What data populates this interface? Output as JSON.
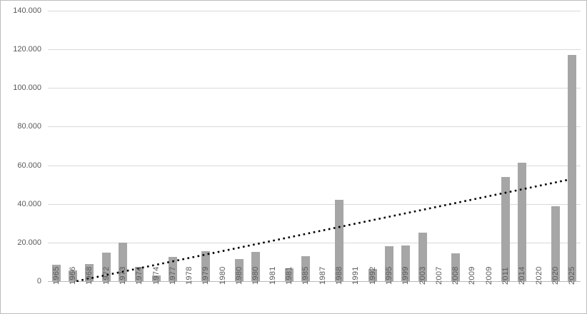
{
  "chart_data": {
    "type": "bar",
    "title": "",
    "xlabel": "",
    "ylabel": "",
    "categories": [
      "1965",
      "1966",
      "1968",
      "1972",
      "1973",
      "1974",
      "1974",
      "1977",
      "1978",
      "1979",
      "1980",
      "1980",
      "1980",
      "1981",
      "1981",
      "1985",
      "1987",
      "1988",
      "1991",
      "1992",
      "1995",
      "1999",
      "2003",
      "2007",
      "2008",
      "2009",
      "2009",
      "2011",
      "2014",
      "2020",
      "2020",
      "2025"
    ],
    "values": [
      8600,
      5600,
      9000,
      14800,
      19900,
      7300,
      2900,
      12700,
      0,
      15700,
      0,
      11300,
      15200,
      0,
      6700,
      13100,
      0,
      42200,
      0,
      6300,
      18000,
      18600,
      25200,
      0,
      14400,
      0,
      0,
      53800,
      61500,
      0,
      38900,
      117000
    ],
    "ylim": [
      0,
      140000
    ],
    "y_tick_values": [
      0,
      20000,
      40000,
      60000,
      80000,
      100000,
      120000,
      140000
    ],
    "y_tick_labels": [
      "0",
      "20.000",
      "40.000",
      "60.000",
      "80.000",
      "100.000",
      "120.000",
      "140.000"
    ],
    "grid": true,
    "legend": "none",
    "number_format": "dot-thousands-separator",
    "trendline": {
      "type": "linear",
      "style": "dotted",
      "start": {
        "x_frac": 0.054,
        "value": 0
      },
      "end": {
        "x_frac": 0.977,
        "value": 52500
      }
    }
  },
  "colors": {
    "bar": "#a6a6a6",
    "gridline": "#d9d9d9",
    "axis_line": "#b8b8b8",
    "label_text": "#595959",
    "trendline": "#000000",
    "background": "#ffffff",
    "frame_border": "#bdbdbd"
  }
}
